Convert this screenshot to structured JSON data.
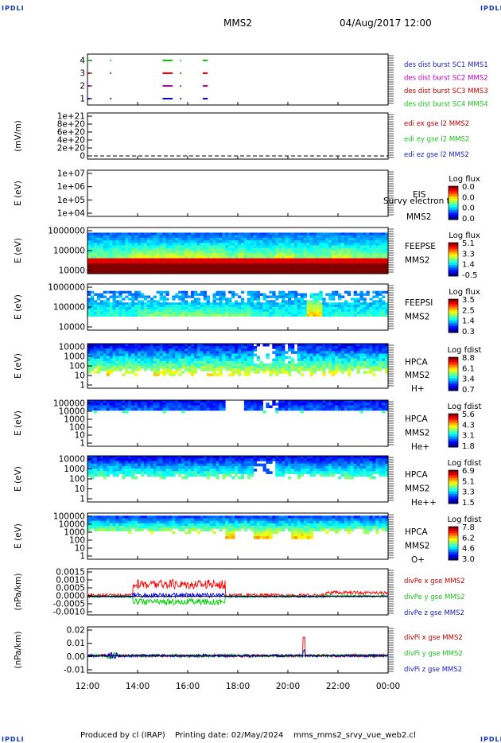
{
  "corners": {
    "top_left": "IPDLI",
    "top_right": "IPDLI",
    "bottom_left": "IPDLI",
    "bottom_right": "IPDLI"
  },
  "header": {
    "spacecraft": "MMS2",
    "datetime": "04/Aug/2017 12:00"
  },
  "footer": {
    "produced_by": "Produced by cl (IRAP)",
    "printing_date": "Printing date: 02/May/2024",
    "script": "mms_mms2_srvy_vue_web2.cl"
  },
  "time_axis": {
    "ticks": [
      "12:00",
      "14:00",
      "16:00",
      "18:00",
      "20:00",
      "22:00",
      "00:00"
    ]
  },
  "colors": {
    "red": "#ff0000",
    "green": "#00d000",
    "blue": "#0000ff",
    "magenta": "#c000c0",
    "ann_blue": "#2020c0",
    "ann_green": "#20c020"
  },
  "chart_data": [
    {
      "type": "line",
      "panel": "burst",
      "ylabel": "",
      "yticks": [
        "4",
        "3",
        "2",
        "1"
      ],
      "ylim": [
        0.5,
        4.5
      ],
      "series": [
        {
          "name": "des dist burst SC1 MMS1",
          "y": 1,
          "color": "#0000ff",
          "intervals": [
            [
              0.0,
              0.1
            ],
            [
              0.9,
              0.95
            ],
            [
              3.0,
              3.4
            ],
            [
              3.7,
              3.75
            ],
            [
              4.6,
              4.8
            ]
          ]
        },
        {
          "name": "des dist burst SC2 MMS2",
          "y": 2,
          "color": "#c000c0",
          "intervals": [
            [
              0.0,
              0.1
            ],
            [
              3.0,
              3.4
            ],
            [
              3.7,
              3.75
            ],
            [
              4.6,
              4.8
            ]
          ]
        },
        {
          "name": "des dist burst SC3 MMS3",
          "y": 3,
          "color": "#ff0000",
          "intervals": [
            [
              0.0,
              0.1
            ],
            [
              0.9,
              0.95
            ],
            [
              3.0,
              3.4
            ],
            [
              3.7,
              3.75
            ],
            [
              4.6,
              4.8
            ]
          ]
        },
        {
          "name": "des dist burst SC4 MMS4",
          "y": 4,
          "color": "#00d000",
          "intervals": [
            [
              0.0,
              0.1
            ],
            [
              0.9,
              0.95
            ],
            [
              3.0,
              3.4
            ],
            [
              3.7,
              3.75
            ],
            [
              4.6,
              4.8
            ]
          ]
        }
      ],
      "legend": [
        {
          "text": "des dist burst SC1 MMS1",
          "color": "#2020c0"
        },
        {
          "text": "des dist burst SC2 MMS2",
          "color": "#c000c0"
        },
        {
          "text": "des dist burst SC3 MMS3",
          "color": "#c00000"
        },
        {
          "text": "des dist burst SC4 MMS4",
          "color": "#20c020"
        }
      ]
    },
    {
      "type": "line",
      "panel": "edi",
      "ylabel": "(mV/m)",
      "yticks": [
        "1e+21",
        "8e+20",
        "6e+20",
        "4e+20",
        "2e+20",
        "0"
      ],
      "ylim": [
        0,
        1e+21
      ],
      "series": [
        {
          "name": "edi ez gse l2 MMS2",
          "y_value": 0,
          "style": "dashed"
        }
      ],
      "legend": [
        {
          "text": "edi ex gse l2 MMS2",
          "color": "#c00000"
        },
        {
          "text": "edi ey gse l2 MMS2",
          "color": "#20c020"
        },
        {
          "text": "edi ez gse l2 MMS2",
          "color": "#2020c0"
        }
      ]
    },
    {
      "type": "heatmap",
      "panel": "eis",
      "ylabel": "E (eV)",
      "yticks": [
        "1e+07",
        "1e+06",
        "1e+05",
        "1e+04"
      ],
      "ylim": [
        10000.0,
        10000000.0
      ],
      "yscale": "log",
      "empty": true,
      "labels": [
        "EIS",
        "MMS2"
      ],
      "overlay_text": "Survy electron to",
      "colorbar": {
        "title": "Log flux",
        "ticks": [
          "0.0",
          "0.0",
          "0.0",
          "0.0"
        ]
      }
    },
    {
      "type": "heatmap",
      "panel": "feepse",
      "ylabel": "E (eV)",
      "yticks": [
        "1000000",
        "100000",
        "10000"
      ],
      "ylim": [
        10000.0,
        1000000.0
      ],
      "yscale": "log",
      "labels": [
        "FEEPSE",
        "MMS2"
      ],
      "colorbar": {
        "title": "Log flux",
        "ticks": [
          "5.1",
          "3.3",
          "1.4",
          "-0.5"
        ]
      }
    },
    {
      "type": "heatmap",
      "panel": "feepsi",
      "ylabel": "E (eV)",
      "yticks": [
        "1000000",
        "100000",
        "10000"
      ],
      "ylim": [
        10000.0,
        1000000.0
      ],
      "yscale": "log",
      "labels": [
        "FEEPSI",
        "MMS2"
      ],
      "colorbar": {
        "title": "Log flux",
        "ticks": [
          "3.5",
          "2.5",
          "1.4",
          "0.3"
        ]
      }
    },
    {
      "type": "heatmap",
      "panel": "hpca_h",
      "ylabel": "E (eV)",
      "yticks": [
        "10000",
        "1000",
        "100",
        "10",
        "1"
      ],
      "ylim": [
        1,
        40000
      ],
      "yscale": "log",
      "labels": [
        "HPCA",
        "MMS2",
        "H+"
      ],
      "colorbar": {
        "title": "Log fdist",
        "ticks": [
          "8.8",
          "6.1",
          "3.4",
          "0.7"
        ]
      }
    },
    {
      "type": "heatmap",
      "panel": "hpca_he",
      "ylabel": "E (eV)",
      "yticks": [
        "100000",
        "10000",
        "1000",
        "100",
        "10",
        "1"
      ],
      "ylim": [
        1,
        100000
      ],
      "yscale": "log",
      "labels": [
        "HPCA",
        "MMS2",
        "He+"
      ],
      "colorbar": {
        "title": "Log fdist",
        "ticks": [
          "5.6",
          "4.3",
          "3.1",
          "1.8"
        ]
      }
    },
    {
      "type": "heatmap",
      "panel": "hpca_hepp",
      "ylabel": "E (eV)",
      "yticks": [
        "10000",
        "1000",
        "100",
        "10",
        "1"
      ],
      "ylim": [
        1,
        40000
      ],
      "yscale": "log",
      "labels": [
        "HPCA",
        "MMS2",
        "He++"
      ],
      "colorbar": {
        "title": "Log fdist",
        "ticks": [
          "6.9",
          "5.1",
          "3.3",
          "1.5"
        ]
      }
    },
    {
      "type": "heatmap",
      "panel": "hpca_o",
      "ylabel": "E (eV)",
      "yticks": [
        "100000",
        "10000",
        "1000",
        "100",
        "10",
        "1"
      ],
      "ylim": [
        1,
        100000
      ],
      "yscale": "log",
      "labels": [
        "HPCA",
        "MMS2",
        "O+"
      ],
      "colorbar": {
        "title": "Log fdist",
        "ticks": [
          "7.8",
          "6.2",
          "4.6",
          "3.0"
        ]
      }
    },
    {
      "type": "line",
      "panel": "divpe",
      "ylabel": "(nPa/km)",
      "yticks": [
        "0.0015",
        "0.0010",
        "0.0005",
        "0.0000",
        "-0.0005",
        "-0.0010"
      ],
      "ylim": [
        -0.0012,
        0.0018
      ],
      "series": [
        {
          "name": "divPe x gse MMS2",
          "color": "#ff0000"
        },
        {
          "name": "divPe y gse MMS2",
          "color": "#00d000"
        },
        {
          "name": "divPe z gse MMS2",
          "color": "#0000ff"
        }
      ],
      "legend": [
        {
          "text": "divPe x gse MMS2",
          "color": "#c00000"
        },
        {
          "text": "divPe y gse MMS2",
          "color": "#20c020"
        },
        {
          "text": "divPe z gse MMS2",
          "color": "#2020c0"
        }
      ]
    },
    {
      "type": "line",
      "panel": "divpi",
      "ylabel": "(nPa/km)",
      "yticks": [
        "0.02",
        "0.01",
        "0.00",
        "-0.01"
      ],
      "ylim": [
        -0.015,
        0.025
      ],
      "series": [
        {
          "name": "divPi x gse MMS2",
          "color": "#ff0000"
        },
        {
          "name": "divPi y gse MMS2",
          "color": "#00d000"
        },
        {
          "name": "divPi z gse MMS2",
          "color": "#0000ff"
        }
      ],
      "legend": [
        {
          "text": "divPi x gse MMS2",
          "color": "#c00000"
        },
        {
          "text": "divPi y gse MMS2",
          "color": "#20c020"
        },
        {
          "text": "divPi z gse MMS2",
          "color": "#2020c0"
        }
      ]
    }
  ]
}
